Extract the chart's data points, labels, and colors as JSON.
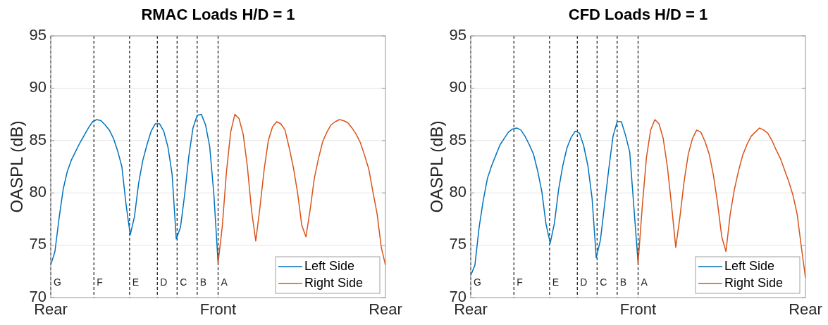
{
  "chart_data": [
    {
      "type": "line",
      "title": "RMAC Loads H/D = 1",
      "ylabel": "OASPL (dB)",
      "categories": [
        "Rear",
        null,
        null,
        null,
        null,
        null,
        null,
        null,
        null,
        null,
        null,
        null,
        null,
        null,
        null,
        null,
        null,
        null,
        null,
        null,
        null,
        null,
        null,
        null,
        null,
        null,
        null,
        null,
        null,
        null,
        null,
        null,
        null,
        null,
        null,
        null,
        null,
        null,
        null,
        null,
        "Front",
        null,
        null,
        null,
        null,
        null,
        null,
        null,
        null,
        null,
        null,
        null,
        null,
        null,
        null,
        null,
        null,
        null,
        null,
        null,
        null,
        null,
        null,
        null,
        null,
        null,
        null,
        null,
        null,
        null,
        null,
        null,
        null,
        null,
        null,
        null,
        null,
        null,
        null,
        null,
        "Rear"
      ],
      "ylim": [
        70,
        95
      ],
      "yticks": [
        70,
        75,
        80,
        85,
        90,
        95
      ],
      "grid": true,
      "legend": "bottom right",
      "line_style": "solid",
      "marker": "none",
      "series": [
        {
          "name": "Left Side",
          "color": "#0072bd",
          "values": [
            73.1,
            74.4,
            77.6,
            80.4,
            82.1,
            83.2,
            84.0,
            84.8,
            85.5,
            86.2,
            86.8,
            87.0,
            86.9,
            86.5,
            86.0,
            85.2,
            84.0,
            82.5,
            78.9,
            76.0,
            77.7,
            80.9,
            83.1,
            84.6,
            85.9,
            86.6,
            86.6,
            85.9,
            84.4,
            81.8,
            75.6,
            76.7,
            79.8,
            83.5,
            86.2,
            87.4,
            87.5,
            86.5,
            84.4,
            79.8,
            73.3,
            null,
            null,
            null,
            null,
            null,
            null,
            null,
            null,
            null,
            null,
            null,
            null,
            null,
            null,
            null,
            null,
            null,
            null,
            null,
            null,
            null,
            null,
            null,
            null,
            null,
            null,
            null,
            null,
            null,
            null,
            null,
            null,
            null,
            null,
            null,
            null,
            null,
            null,
            null,
            null
          ]
        },
        {
          "name": "Right Side",
          "color": "#d95319",
          "values": [
            null,
            null,
            null,
            null,
            null,
            null,
            null,
            null,
            null,
            null,
            null,
            null,
            null,
            null,
            null,
            null,
            null,
            null,
            null,
            null,
            null,
            null,
            null,
            null,
            null,
            null,
            null,
            null,
            null,
            null,
            null,
            null,
            null,
            null,
            null,
            null,
            null,
            null,
            null,
            null,
            73.3,
            76.8,
            82.0,
            85.8,
            87.5,
            87.1,
            85.6,
            82.5,
            78.3,
            75.4,
            78.6,
            82.2,
            85.0,
            86.3,
            86.8,
            86.6,
            86.0,
            84.3,
            82.4,
            80.0,
            76.9,
            75.8,
            78.4,
            81.4,
            83.3,
            84.9,
            85.8,
            86.5,
            86.8,
            87.0,
            86.9,
            86.7,
            86.2,
            85.6,
            84.8,
            83.6,
            82.3,
            80.1,
            78.0,
            74.8,
            73.1
          ]
        }
      ],
      "annotations": [
        "G",
        "F",
        "E",
        "D",
        "C",
        "B",
        "A"
      ]
    },
    {
      "type": "line",
      "title": "CFD Loads H/D = 1",
      "ylabel": "OASPL (dB)",
      "categories": [
        "Rear",
        null,
        null,
        null,
        null,
        null,
        null,
        null,
        null,
        null,
        null,
        null,
        null,
        null,
        null,
        null,
        null,
        null,
        null,
        null,
        null,
        null,
        null,
        null,
        null,
        null,
        null,
        null,
        null,
        null,
        null,
        null,
        null,
        null,
        null,
        null,
        null,
        null,
        null,
        null,
        "Front",
        null,
        null,
        null,
        null,
        null,
        null,
        null,
        null,
        null,
        null,
        null,
        null,
        null,
        null,
        null,
        null,
        null,
        null,
        null,
        null,
        null,
        null,
        null,
        null,
        null,
        null,
        null,
        null,
        null,
        null,
        null,
        null,
        null,
        null,
        null,
        null,
        null,
        null,
        null,
        "Rear"
      ],
      "ylim": [
        70,
        95
      ],
      "yticks": [
        70,
        75,
        80,
        85,
        90,
        95
      ],
      "grid": true,
      "legend": "bottom right",
      "line_style": "solid",
      "marker": "none",
      "series": [
        {
          "name": "Left Side",
          "color": "#0072bd",
          "values": [
            72.1,
            73.1,
            76.7,
            79.3,
            81.4,
            82.6,
            83.6,
            84.6,
            85.2,
            85.8,
            86.1,
            86.2,
            86.0,
            85.4,
            84.6,
            83.7,
            82.1,
            80.1,
            77.0,
            75.2,
            77.1,
            80.3,
            82.6,
            84.3,
            85.3,
            85.9,
            85.7,
            84.5,
            82.6,
            79.5,
            73.8,
            75.5,
            78.9,
            82.3,
            85.4,
            86.8,
            86.8,
            85.5,
            83.9,
            78.6,
            73.3,
            null,
            null,
            null,
            null,
            null,
            null,
            null,
            null,
            null,
            null,
            null,
            null,
            null,
            null,
            null,
            null,
            null,
            null,
            null,
            null,
            null,
            null,
            null,
            null,
            null,
            null,
            null,
            null,
            null,
            null,
            null,
            null,
            null,
            null,
            null,
            null,
            null,
            null,
            null,
            null
          ]
        },
        {
          "name": "Right Side",
          "color": "#d95319",
          "values": [
            null,
            null,
            null,
            null,
            null,
            null,
            null,
            null,
            null,
            null,
            null,
            null,
            null,
            null,
            null,
            null,
            null,
            null,
            null,
            null,
            null,
            null,
            null,
            null,
            null,
            null,
            null,
            null,
            null,
            null,
            null,
            null,
            null,
            null,
            null,
            null,
            null,
            null,
            null,
            null,
            73.3,
            78.7,
            83.4,
            86.0,
            87.0,
            86.6,
            85.2,
            82.5,
            78.8,
            74.8,
            77.7,
            81.1,
            83.7,
            85.2,
            86.0,
            85.8,
            84.9,
            83.7,
            81.7,
            79.0,
            75.8,
            74.4,
            77.9,
            80.3,
            82.1,
            83.6,
            84.6,
            85.4,
            85.8,
            86.2,
            86.0,
            85.7,
            85.0,
            84.1,
            83.3,
            82.2,
            81.1,
            79.8,
            78.0,
            74.9,
            71.9
          ]
        }
      ],
      "annotations": [
        "G",
        "F",
        "E",
        "D",
        "C",
        "B",
        "A"
      ]
    }
  ]
}
